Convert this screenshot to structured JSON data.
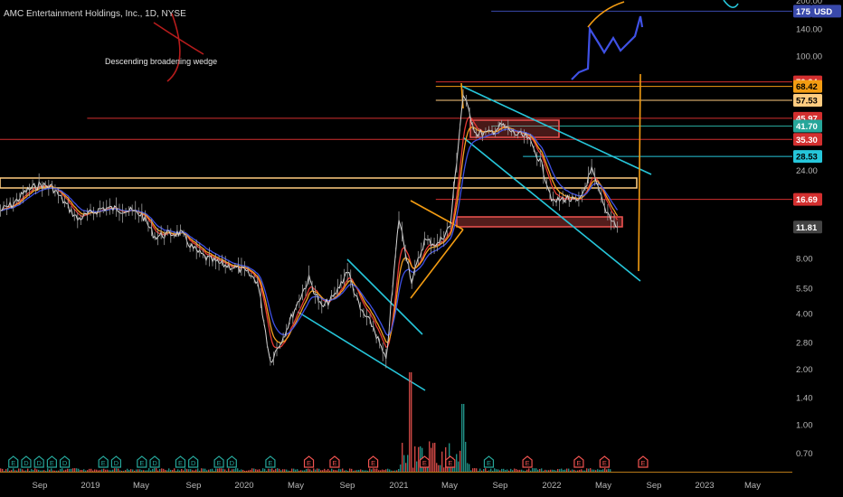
{
  "header": {
    "symbol_title": "AMC Entertainment Holdings, Inc., 1D, NYSE",
    "annotation": "Descending broadening wedge"
  },
  "colors": {
    "background": "#000000",
    "price": "#d8d8d8",
    "ema_red": "#e53935",
    "ema_blue": "#3f51e5",
    "ema_orange": "#f4a020",
    "channel": "#26c6da",
    "fib_line": "#f39c12",
    "resistance": "#d32f2f",
    "zone": "#ffcc80",
    "volume_red": "#ef5350",
    "volume_green": "#26a69a",
    "earnings_green": "#26a69a",
    "earnings_red": "#ef5350"
  },
  "chart_data": {
    "type": "line",
    "title": "AMC Entertainment Holdings, Inc., 1D, NYSE",
    "scale": "log",
    "ylim": [
      0.6,
      200
    ],
    "y_ticks": [
      "200.00",
      "175",
      "140.00",
      "100.00",
      "28.53",
      "24.00",
      "11.81",
      "8.00",
      "5.50",
      "4.00",
      "2.80",
      "2.00",
      "1.40",
      "1.00",
      "0.70"
    ],
    "x_ticks": [
      "Sep",
      "2019",
      "May",
      "Sep",
      "2020",
      "May",
      "Sep",
      "2021",
      "May",
      "Sep",
      "2022",
      "May",
      "Sep",
      "2023",
      "May"
    ],
    "price_labels": [
      {
        "text": "175",
        "value": 175,
        "bg": "#3949ab",
        "fg": "#ffffff"
      },
      {
        "text": "USD",
        "value": 175,
        "bg": "#3949ab",
        "fg": "#ffffff"
      },
      {
        "text": "72.34",
        "value": 72.34,
        "bg": "#d32f2f",
        "fg": "#ffffff"
      },
      {
        "text": "68.42",
        "value": 68.42,
        "bg": "#f39c12",
        "fg": "#000000"
      },
      {
        "text": "57.53",
        "value": 57.53,
        "bg": "#ffcc80",
        "fg": "#000000"
      },
      {
        "text": "45.97",
        "value": 45.97,
        "bg": "#d32f2f",
        "fg": "#ffffff"
      },
      {
        "text": "41.70",
        "value": 41.7,
        "bg": "#26a69a",
        "fg": "#ffffff"
      },
      {
        "text": "35.30",
        "value": 35.3,
        "bg": "#d32f2f",
        "fg": "#ffffff"
      },
      {
        "text": "28.53",
        "value": 28.53,
        "bg": "#26c6da",
        "fg": "#000000"
      },
      {
        "text": "16.69",
        "value": 16.69,
        "bg": "#d32f2f",
        "fg": "#ffffff"
      },
      {
        "text": "11.81",
        "value": 11.81,
        "bg": "#444444",
        "fg": "#ffffff"
      }
    ],
    "horizontal_levels": [
      {
        "value": 175,
        "color": "#3949ab",
        "x_from": 0.62
      },
      {
        "value": 72.34,
        "color": "#d32f2f",
        "x_from": 0.55
      },
      {
        "value": 68.42,
        "color": "#f39c12",
        "x_from": 0.55
      },
      {
        "value": 57.53,
        "color": "#ffcc80",
        "x_from": 0.55
      },
      {
        "value": 45.97,
        "color": "#d32f2f",
        "x_from": 0.11
      },
      {
        "value": 41.7,
        "color": "#26a69a",
        "x_from": 0.62
      },
      {
        "value": 35.3,
        "color": "#d32f2f",
        "x_from": 0.0
      },
      {
        "value": 28.53,
        "color": "#26c6da",
        "x_from": 0.66
      },
      {
        "value": 16.69,
        "color": "#d32f2f",
        "x_from": 0.55
      }
    ],
    "price_series": [
      {
        "t": "2018-06",
        "v": 14.5
      },
      {
        "t": "2018-07",
        "v": 15.8
      },
      {
        "t": "2018-08",
        "v": 18.5
      },
      {
        "t": "2018-09",
        "v": 20.0
      },
      {
        "t": "2018-10",
        "v": 19.5
      },
      {
        "t": "2018-11",
        "v": 16.0
      },
      {
        "t": "2018-12",
        "v": 13.0
      },
      {
        "t": "2019-01",
        "v": 14.0
      },
      {
        "t": "2019-02",
        "v": 15.0
      },
      {
        "t": "2019-03",
        "v": 14.8
      },
      {
        "t": "2019-04",
        "v": 14.5
      },
      {
        "t": "2019-05",
        "v": 13.8
      },
      {
        "t": "2019-06",
        "v": 10.5
      },
      {
        "t": "2019-07",
        "v": 10.8
      },
      {
        "t": "2019-08",
        "v": 11.0
      },
      {
        "t": "2019-09",
        "v": 9.0
      },
      {
        "t": "2019-10",
        "v": 8.0
      },
      {
        "t": "2019-11",
        "v": 7.5
      },
      {
        "t": "2019-12",
        "v": 7.2
      },
      {
        "t": "2020-01",
        "v": 6.8
      },
      {
        "t": "2020-02",
        "v": 6.0
      },
      {
        "t": "2020-03",
        "v": 2.2
      },
      {
        "t": "2020-04",
        "v": 3.0
      },
      {
        "t": "2020-05",
        "v": 4.4
      },
      {
        "t": "2020-06",
        "v": 6.2
      },
      {
        "t": "2020-07",
        "v": 4.3
      },
      {
        "t": "2020-08",
        "v": 5.0
      },
      {
        "t": "2020-09",
        "v": 6.9
      },
      {
        "t": "2020-10",
        "v": 4.2
      },
      {
        "t": "2020-11",
        "v": 3.4
      },
      {
        "t": "2020-12",
        "v": 2.2
      },
      {
        "t": "2021-01",
        "v": 13.2
      },
      {
        "t": "2021-02",
        "v": 6.0
      },
      {
        "t": "2021-03",
        "v": 10.0
      },
      {
        "t": "2021-04",
        "v": 9.5
      },
      {
        "t": "2021-05",
        "v": 12.0
      },
      {
        "t": "2021-06",
        "v": 62.0
      },
      {
        "t": "2021-07",
        "v": 38.0
      },
      {
        "t": "2021-08",
        "v": 38.0
      },
      {
        "t": "2021-09",
        "v": 42.0
      },
      {
        "t": "2021-10",
        "v": 38.0
      },
      {
        "t": "2021-11",
        "v": 36.0
      },
      {
        "t": "2021-12",
        "v": 27.0
      },
      {
        "t": "2022-01",
        "v": 16.0
      },
      {
        "t": "2022-02",
        "v": 17.0
      },
      {
        "t": "2022-03",
        "v": 16.0
      },
      {
        "t": "2022-04",
        "v": 24.0
      },
      {
        "t": "2022-05",
        "v": 15.0
      },
      {
        "t": "2022-06",
        "v": 11.8
      }
    ],
    "earnings_markers": [
      {
        "t": "2018-05",
        "color": "#26a69a",
        "label": "E"
      },
      {
        "t": "2018-07",
        "color": "#26a69a",
        "label": "E"
      },
      {
        "t": "2018-08",
        "color": "#26a69a",
        "label": "D"
      },
      {
        "t": "2018-09",
        "color": "#26a69a",
        "label": "D"
      },
      {
        "t": "2018-10",
        "color": "#26a69a",
        "label": "E"
      },
      {
        "t": "2018-11",
        "color": "#26a69a",
        "label": "D"
      },
      {
        "t": "2019-02",
        "color": "#26a69a",
        "label": "E"
      },
      {
        "t": "2019-03",
        "color": "#26a69a",
        "label": "D"
      },
      {
        "t": "2019-05",
        "color": "#26a69a",
        "label": "E"
      },
      {
        "t": "2019-06",
        "color": "#26a69a",
        "label": "D"
      },
      {
        "t": "2019-08",
        "color": "#26a69a",
        "label": "E"
      },
      {
        "t": "2019-09",
        "color": "#26a69a",
        "label": "D"
      },
      {
        "t": "2019-11",
        "color": "#26a69a",
        "label": "E"
      },
      {
        "t": "2019-12",
        "color": "#26a69a",
        "label": "D"
      },
      {
        "t": "2020-03",
        "color": "#26a69a",
        "label": "E"
      },
      {
        "t": "2020-06",
        "color": "#ef5350",
        "label": "E"
      },
      {
        "t": "2020-08",
        "color": "#ef5350",
        "label": "E"
      },
      {
        "t": "2020-11",
        "color": "#ef5350",
        "label": "E"
      },
      {
        "t": "2021-03",
        "color": "#ef5350",
        "label": "E"
      },
      {
        "t": "2021-05",
        "color": "#ef5350",
        "label": "E"
      },
      {
        "t": "2021-08",
        "color": "#26a69a",
        "label": "E"
      },
      {
        "t": "2021-11",
        "color": "#ef5350",
        "label": "E"
      },
      {
        "t": "2022-03",
        "color": "#ef5350",
        "label": "E"
      },
      {
        "t": "2022-05",
        "color": "#ef5350",
        "label": "E"
      },
      {
        "t": "2022-08",
        "color": "#ef5350",
        "label": "E"
      }
    ]
  }
}
